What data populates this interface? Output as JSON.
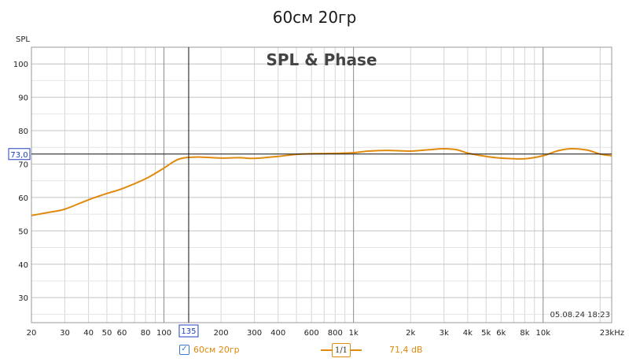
{
  "window": {
    "title": "60см 20гр"
  },
  "chart_data": {
    "type": "line",
    "title": "SPL & Phase",
    "ylabel": "SPL",
    "x_unit_label": "Hz",
    "x_scale": "log",
    "xlim": [
      20,
      23000
    ],
    "ylim": [
      22.5,
      105
    ],
    "y_ticks": [
      30,
      40,
      50,
      60,
      70,
      80,
      90,
      100
    ],
    "x_ticks": [
      {
        "value": 20,
        "label": "20"
      },
      {
        "value": 30,
        "label": "30"
      },
      {
        "value": 40,
        "label": "40"
      },
      {
        "value": 50,
        "label": "50"
      },
      {
        "value": 60,
        "label": "60"
      },
      {
        "value": 80,
        "label": "80"
      },
      {
        "value": 100,
        "label": "100"
      },
      {
        "value": 200,
        "label": "200"
      },
      {
        "value": 300,
        "label": "300"
      },
      {
        "value": 400,
        "label": "400"
      },
      {
        "value": 600,
        "label": "600"
      },
      {
        "value": 800,
        "label": "800"
      },
      {
        "value": 1000,
        "label": "1k"
      },
      {
        "value": 2000,
        "label": "2k"
      },
      {
        "value": 3000,
        "label": "3k"
      },
      {
        "value": 4000,
        "label": "4k"
      },
      {
        "value": 5000,
        "label": "5k"
      },
      {
        "value": 6000,
        "label": "6k"
      },
      {
        "value": 8000,
        "label": "8k"
      },
      {
        "value": 10000,
        "label": "10k"
      },
      {
        "value": 23000,
        "label": "23kHz"
      }
    ],
    "cursor": {
      "x": 135,
      "x_label": "135",
      "y": 73.0,
      "y_label": "73,0"
    },
    "timestamp": "05.08.24 18:23",
    "series": [
      {
        "name": "60см 20гр",
        "color": "#e08a0e",
        "x": [
          20,
          25,
          30,
          40,
          50,
          60,
          80,
          100,
          120,
          150,
          200,
          250,
          300,
          400,
          500,
          600,
          800,
          1000,
          1200,
          1500,
          2000,
          2500,
          3000,
          3500,
          4000,
          5000,
          6000,
          8000,
          10000,
          12000,
          14000,
          17000,
          20000,
          23000
        ],
        "values": [
          54.6,
          55.6,
          56.5,
          59.3,
          61.2,
          62.6,
          65.6,
          68.8,
          71.5,
          72.1,
          71.8,
          71.9,
          71.7,
          72.3,
          72.9,
          73.1,
          73.2,
          73.4,
          73.9,
          74.1,
          73.9,
          74.3,
          74.6,
          74.3,
          73.3,
          72.3,
          71.8,
          71.6,
          72.5,
          74.0,
          74.6,
          74.2,
          73.0,
          72.5
        ]
      }
    ]
  },
  "legend": {
    "series_label": "60см 20гр",
    "smoothing_label": "1/1",
    "value_label": "71,4 dB",
    "checked_glyph": "✓"
  }
}
